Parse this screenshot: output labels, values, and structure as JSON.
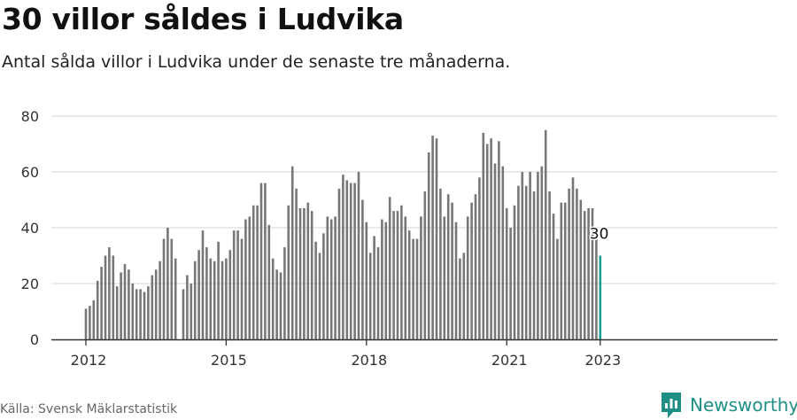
{
  "header": {
    "title": "30 villor såldes i Ludvika",
    "subtitle": "Antal sålda villor i Ludvika under de senaste tre månaderna."
  },
  "footer": {
    "source": "Källa: Svensk Mäklarstatistik",
    "brand": "Newsworthy"
  },
  "colors": {
    "bar": "#777777",
    "highlight": "#1a9e93",
    "grid": "#dddddd",
    "axis": "#333333",
    "brand": "#1f8f85"
  },
  "icons": {
    "brand_logo": "newsworthy-logo-icon"
  },
  "chart_data": {
    "type": "bar",
    "title": "30 villor såldes i Ludvika",
    "subtitle": "Antal sålda villor i Ludvika under de senaste tre månaderna.",
    "xlabel": "",
    "ylabel": "",
    "x_ticks": [
      "2012",
      "2015",
      "2018",
      "2021",
      "2023"
    ],
    "y_ticks": [
      0,
      20,
      40,
      60,
      80
    ],
    "ylim": [
      0,
      80
    ],
    "grid": true,
    "legend": "none",
    "period": "rolling three months, monthly, 2012-01 to 2023-01",
    "first_month": "2012-01",
    "values": [
      11,
      12,
      14,
      21,
      26,
      30,
      33,
      30,
      19,
      24,
      27,
      25,
      20,
      18,
      18,
      17,
      19,
      23,
      25,
      28,
      36,
      40,
      36,
      29,
      null,
      18,
      23,
      20,
      28,
      32,
      39,
      33,
      29,
      28,
      35,
      28,
      29,
      32,
      39,
      39,
      36,
      43,
      44,
      48,
      48,
      56,
      56,
      41,
      29,
      25,
      24,
      33,
      48,
      62,
      54,
      47,
      47,
      49,
      46,
      35,
      31,
      38,
      44,
      43,
      44,
      54,
      59,
      57,
      56,
      56,
      60,
      50,
      42,
      31,
      37,
      33,
      43,
      42,
      51,
      46,
      46,
      48,
      44,
      39,
      36,
      36,
      44,
      53,
      67,
      73,
      72,
      54,
      44,
      52,
      49,
      42,
      29,
      31,
      44,
      49,
      52,
      58,
      74,
      70,
      72,
      63,
      71,
      62,
      47,
      40,
      48,
      55,
      60,
      55,
      60,
      53,
      60,
      62,
      75,
      53,
      45,
      36,
      49,
      49,
      54,
      58,
      54,
      50,
      46,
      47,
      47,
      40,
      30
    ],
    "highlight": {
      "label": "30",
      "value": 30
    }
  }
}
